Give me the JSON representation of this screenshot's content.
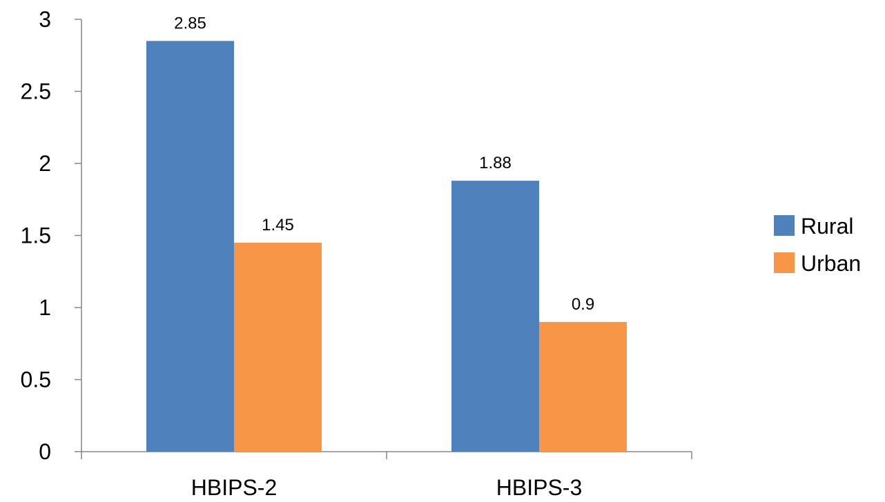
{
  "chart_data": {
    "type": "bar",
    "title": "",
    "xlabel": "",
    "ylabel": "",
    "categories": [
      "HBIPS-2",
      "HBIPS-3"
    ],
    "series": [
      {
        "name": "Rural",
        "color": "#4F81BD",
        "values": [
          2.85,
          1.88
        ],
        "labels": [
          "2.85",
          "1.88"
        ]
      },
      {
        "name": "Urban",
        "color": "#F79646",
        "values": [
          1.45,
          0.9
        ],
        "labels": [
          "1.45",
          "0.9"
        ]
      }
    ],
    "ylim": [
      0,
      3
    ],
    "yticks": [
      0,
      0.5,
      1,
      1.5,
      2,
      2.5,
      3
    ],
    "ytick_labels": [
      "0",
      "0.5",
      "1",
      "1.5",
      "2",
      "2.5",
      "3"
    ],
    "grid": false,
    "legend_position": "right",
    "axis_color": "#868686"
  }
}
